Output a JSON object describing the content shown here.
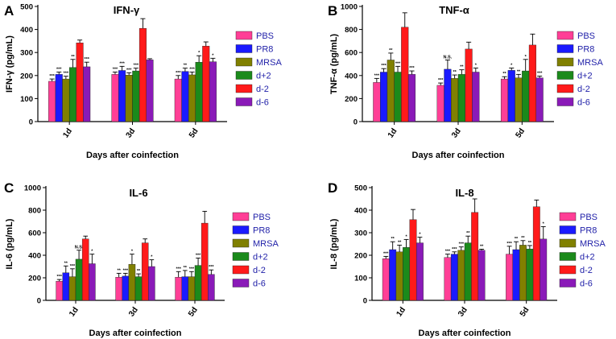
{
  "figure": {
    "shared_xlabel": "Days after coinfection"
  },
  "series_colors": [
    "#ff3f96",
    "#1a1aff",
    "#808000",
    "#1b8a1b",
    "#ff1a1a",
    "#8a1ab8"
  ],
  "chart_data": [
    {
      "type": "bar",
      "panel": "A",
      "title": "IFN-γ",
      "ylabel": "IFN-γ  (pg/mL)",
      "xlabel": "Days after coinfection",
      "ylim": [
        0,
        500
      ],
      "yticks": [
        0,
        100,
        200,
        300,
        400,
        500
      ],
      "categories": [
        "1d",
        "3d",
        "5d"
      ],
      "series": [
        {
          "name": "PBS",
          "values": [
            175,
            205,
            185
          ],
          "errors": [
            10,
            10,
            15
          ],
          "sig": [
            "***",
            "***",
            "***"
          ]
        },
        {
          "name": "PR8",
          "values": [
            205,
            222,
            218
          ],
          "errors": [
            10,
            18,
            14
          ],
          "sig": [
            "***",
            "***",
            "**"
          ]
        },
        {
          "name": "MRSA",
          "values": [
            185,
            202,
            203
          ],
          "errors": [
            12,
            10,
            12
          ],
          "sig": [
            "***",
            "***",
            "***"
          ]
        },
        {
          "name": "d+2",
          "values": [
            235,
            220,
            258
          ],
          "errors": [
            35,
            12,
            28
          ],
          "sig": [
            "**",
            "***",
            "*"
          ]
        },
        {
          "name": "d-2",
          "values": [
            342,
            405,
            328
          ],
          "errors": [
            12,
            42,
            18
          ],
          "sig": [
            "",
            "",
            ""
          ]
        },
        {
          "name": "d-6",
          "values": [
            238,
            268,
            260
          ],
          "errors": [
            20,
            5,
            15
          ],
          "sig": [
            "***",
            "",
            "*"
          ]
        }
      ]
    },
    {
      "type": "bar",
      "panel": "B",
      "title": "TNF-α",
      "ylabel": "TNF-α  (pg/mL)",
      "xlabel": "Days after coinfection",
      "ylim": [
        0,
        1000
      ],
      "yticks": [
        0,
        200,
        400,
        600,
        800,
        1000
      ],
      "categories": [
        "1d",
        "3d",
        "5d"
      ],
      "series": [
        {
          "name": "PBS",
          "values": [
            340,
            315,
            370
          ],
          "errors": [
            35,
            20,
            20
          ],
          "sig": [
            "***",
            "***",
            "**"
          ]
        },
        {
          "name": "PR8",
          "values": [
            430,
            455,
            445
          ],
          "errors": [
            30,
            80,
            20
          ],
          "sig": [
            "***",
            "N.S.",
            "*"
          ]
        },
        {
          "name": "MRSA",
          "values": [
            535,
            375,
            380
          ],
          "errors": [
            60,
            30,
            30
          ],
          "sig": [
            "**",
            "**",
            "**"
          ]
        },
        {
          "name": "d+2",
          "values": [
            430,
            410,
            440
          ],
          "errors": [
            50,
            40,
            100
          ],
          "sig": [
            "***",
            "**",
            "*"
          ]
        },
        {
          "name": "d-2",
          "values": [
            820,
            630,
            665
          ],
          "errors": [
            125,
            60,
            95
          ],
          "sig": [
            "",
            "",
            ""
          ]
        },
        {
          "name": "d-6",
          "values": [
            410,
            430,
            380
          ],
          "errors": [
            30,
            35,
            15
          ],
          "sig": [
            "***",
            "*",
            "***"
          ]
        }
      ]
    },
    {
      "type": "bar",
      "panel": "C",
      "title": "IL-6",
      "ylabel": "IL-6 (pg/mL)",
      "xlabel": "Days after coinfection",
      "ylim": [
        0,
        1000
      ],
      "yticks": [
        0,
        200,
        400,
        600,
        800,
        1000
      ],
      "categories": [
        "1d",
        "3d",
        "5d"
      ],
      "series": [
        {
          "name": "PBS",
          "values": [
            170,
            205,
            205
          ],
          "errors": [
            15,
            35,
            50
          ],
          "sig": [
            "***",
            "**",
            "***"
          ]
        },
        {
          "name": "PR8",
          "values": [
            245,
            215,
            210
          ],
          "errors": [
            60,
            25,
            55
          ],
          "sig": [
            "**",
            "***",
            "**"
          ]
        },
        {
          "name": "MRSA",
          "values": [
            210,
            320,
            210
          ],
          "errors": [
            70,
            90,
            45
          ],
          "sig": [
            "***",
            "*",
            "***"
          ]
        },
        {
          "name": "d+2",
          "values": [
            365,
            210,
            310
          ],
          "errors": [
            80,
            25,
            65
          ],
          "sig": [
            "N.S.",
            "**",
            "***"
          ]
        },
        {
          "name": "d-2",
          "values": [
            545,
            510,
            685
          ],
          "errors": [
            25,
            35,
            105
          ],
          "sig": [
            "",
            "",
            ""
          ]
        },
        {
          "name": "d-6",
          "values": [
            325,
            300,
            230
          ],
          "errors": [
            85,
            60,
            40
          ],
          "sig": [
            "*",
            "*",
            "***"
          ]
        }
      ]
    },
    {
      "type": "bar",
      "panel": "D",
      "title": "IL-8",
      "ylabel": "IL-8 (pg/mL)",
      "xlabel": "Days after coinfection",
      "ylim": [
        0,
        500
      ],
      "yticks": [
        0,
        100,
        200,
        300,
        400,
        500
      ],
      "categories": [
        "1d",
        "3d",
        "5d"
      ],
      "series": [
        {
          "name": "PBS",
          "values": [
            185,
            190,
            205
          ],
          "errors": [
            10,
            15,
            35
          ],
          "sig": [
            "***",
            "***",
            "***"
          ]
        },
        {
          "name": "PR8",
          "values": [
            225,
            205,
            225
          ],
          "errors": [
            35,
            10,
            35
          ],
          "sig": [
            "**",
            "***",
            "**"
          ]
        },
        {
          "name": "MRSA",
          "values": [
            215,
            222,
            245
          ],
          "errors": [
            30,
            15,
            20
          ],
          "sig": [
            "**",
            "***",
            "**"
          ]
        },
        {
          "name": "d+2",
          "values": [
            235,
            255,
            228
          ],
          "errors": [
            35,
            30,
            15
          ],
          "sig": [
            "*",
            "**",
            "**"
          ]
        },
        {
          "name": "d-2",
          "values": [
            358,
            390,
            415
          ],
          "errors": [
            45,
            60,
            30
          ],
          "sig": [
            "",
            "",
            ""
          ]
        },
        {
          "name": "d-6",
          "values": [
            255,
            222,
            272
          ],
          "errors": [
            25,
            5,
            55
          ],
          "sig": [
            "*",
            "**",
            "*"
          ]
        }
      ]
    }
  ]
}
